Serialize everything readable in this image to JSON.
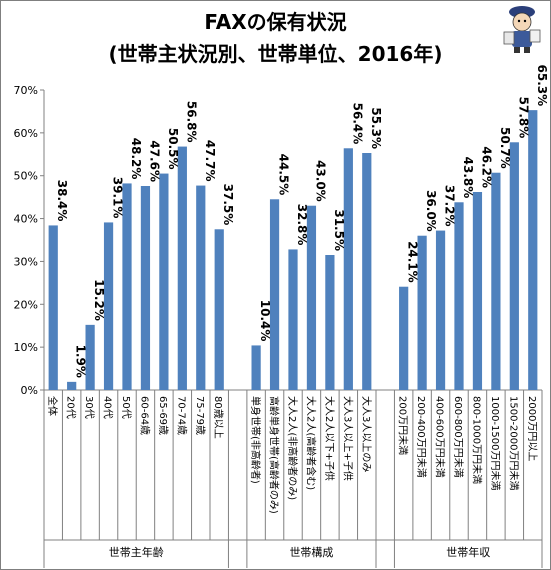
{
  "title_line1": "FAXの保有状況",
  "title_line2": "(世帯主状況別、世帯単位、2016年)",
  "chart_data": {
    "type": "bar",
    "title": "FAXの保有状況 (世帯主状況別、世帯単位、2016年)",
    "ylim": [
      0,
      70
    ],
    "yticks": [
      "0%",
      "10%",
      "20%",
      "30%",
      "40%",
      "50%",
      "60%",
      "70%"
    ],
    "bar_color": "#4f81bd",
    "grid": false,
    "groups": [
      {
        "name": "世帯主年齢",
        "categories": [
          "全体",
          "20代",
          "30代",
          "40代",
          "50代",
          "60-64歳",
          "65-69歳",
          "70-74歳",
          "75-79歳",
          "80歳以上"
        ],
        "values": [
          38.4,
          1.9,
          15.2,
          39.1,
          48.2,
          47.6,
          50.5,
          56.8,
          47.7,
          37.5
        ],
        "labels": [
          "38.4%",
          "1.9%",
          "15.2%",
          "39.1%",
          "48.2%",
          "47.6%",
          "50.5%",
          "56.8%",
          "47.7%",
          "37.5%"
        ]
      },
      {
        "name": "世帯構成",
        "categories": [
          "単身世帯(非高齢者)",
          "高齢単身世帯(高齢者のみ)",
          "大人2人(非高齢者のみ)",
          "大人2人(高齢者含む)",
          "大人2人以下+子供",
          "大人3人以上+子供",
          "大人3人以上のみ"
        ],
        "values": [
          10.4,
          44.5,
          32.8,
          43.0,
          31.5,
          56.4,
          55.3
        ],
        "labels": [
          "10.4%",
          "44.5%",
          "32.8%",
          "43.0%",
          "31.5%",
          "56.4%",
          "55.3%"
        ]
      },
      {
        "name": "世帯年収",
        "categories": [
          "200万円未満",
          "200-400万円未満",
          "400-600万円未満",
          "600-800万円未満",
          "800-1000万円未満",
          "1000-1500万円未満",
          "1500-2000万円未満",
          "2000万円以上"
        ],
        "values": [
          24.1,
          36.0,
          37.2,
          43.8,
          46.2,
          50.7,
          57.8,
          65.3
        ],
        "labels": [
          "24.1%",
          "36.0%",
          "37.2%",
          "43.8%",
          "46.2%",
          "50.7%",
          "57.8%",
          "65.3%"
        ]
      }
    ]
  }
}
